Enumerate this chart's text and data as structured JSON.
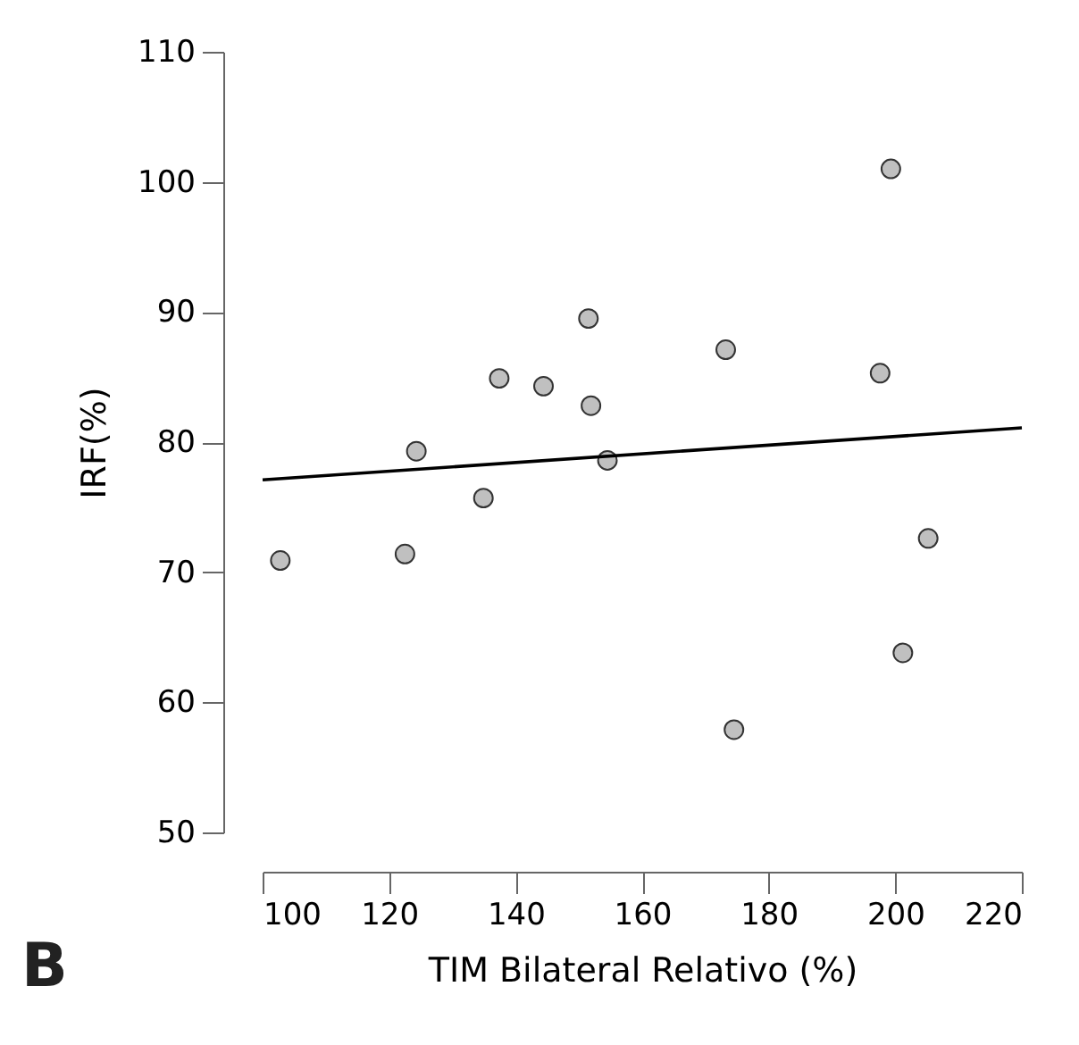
{
  "chart_data": {
    "type": "scatter",
    "xlabel": "TIM Bilateral Relativo (%)",
    "ylabel": "IRF(%)",
    "xlim": [
      100,
      220
    ],
    "xticks": [
      100,
      120,
      140,
      160,
      180,
      200,
      220
    ],
    "ylim": [
      50,
      110
    ],
    "yticks": [
      50,
      60,
      70,
      80,
      90,
      100,
      110
    ],
    "grid": false,
    "annotations": [
      "B"
    ],
    "series": [
      {
        "marker": "circle",
        "color": "#c0c0c0",
        "x": [
          102.8,
          122.5,
          124.3,
          134.9,
          137.4,
          144.4,
          151.5,
          151.9,
          154.5,
          173.2,
          174.5,
          197.6,
          199.3,
          201.2,
          205.2
        ],
        "values": [
          70.9,
          71.4,
          79.3,
          75.7,
          84.9,
          84.3,
          89.5,
          82.8,
          78.6,
          87.1,
          57.9,
          85.3,
          101.0,
          63.8,
          72.6
        ]
      },
      {
        "type": "line",
        "marker": "none",
        "color": "#000000",
        "line_style": "solid",
        "x": [
          100,
          220
        ],
        "values": [
          77.1,
          81.1
        ]
      }
    ]
  }
}
